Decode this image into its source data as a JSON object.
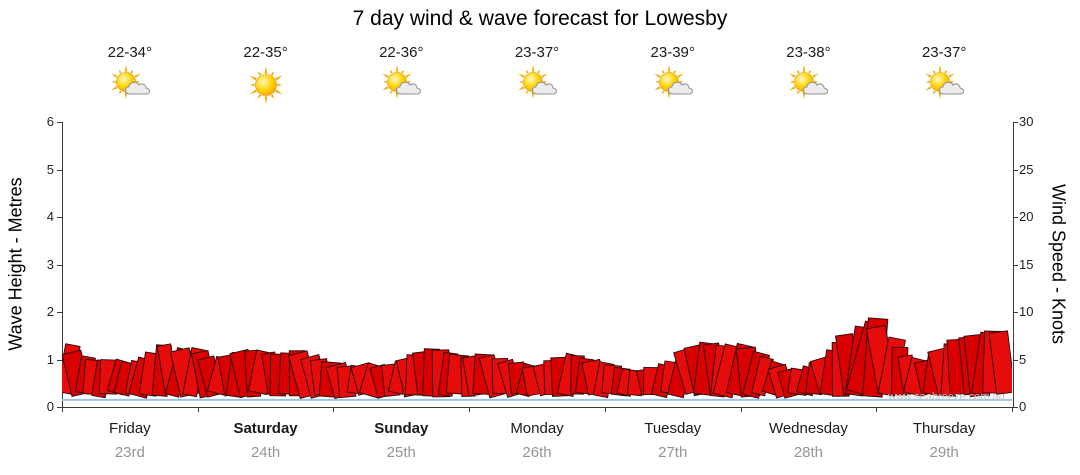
{
  "title": "7 day wind & wave forecast for Lowesby",
  "watermark": "www.seabreeze.com.au",
  "left_axis": {
    "label": "Wave Height - Metres",
    "range": [
      0,
      6
    ],
    "ticks": [
      0,
      1,
      2,
      3,
      4,
      5,
      6
    ]
  },
  "right_axis": {
    "label": "Wind Speed - Knots",
    "range": [
      0,
      30
    ],
    "ticks": [
      0,
      5,
      10,
      15,
      20,
      25,
      30
    ]
  },
  "days": [
    {
      "temp": "22-34°",
      "icon": "sun-cloud",
      "name": "Friday",
      "date": "23rd",
      "bold": false
    },
    {
      "temp": "22-35°",
      "icon": "sun",
      "name": "Saturday",
      "date": "24th",
      "bold": true
    },
    {
      "temp": "22-36°",
      "icon": "sun-cloud",
      "name": "Sunday",
      "date": "25th",
      "bold": true
    },
    {
      "temp": "23-37°",
      "icon": "sun-cloud",
      "name": "Monday",
      "date": "26th",
      "bold": false
    },
    {
      "temp": "23-39°",
      "icon": "sun-cloud",
      "name": "Tuesday",
      "date": "27th",
      "bold": false
    },
    {
      "temp": "23-38°",
      "icon": "sun-cloud",
      "name": "Wednesday",
      "date": "28th",
      "bold": false
    },
    {
      "temp": "23-37°",
      "icon": "sun-cloud",
      "name": "Thursday",
      "date": "29th",
      "bold": false
    }
  ],
  "chart_data": {
    "type": "area",
    "title": "7 day wind & wave forecast for Lowesby",
    "categories": [
      "Friday 23rd",
      "Saturday 24th",
      "Sunday 25th",
      "Monday 26th",
      "Tuesday 27th",
      "Wednesday 28th",
      "Thursday 29th"
    ],
    "points_per_day": 8,
    "x_resolution": "3-hourly",
    "series": [
      {
        "name": "Wind Speed",
        "unit": "knots",
        "color": "#dc0000",
        "style": "red wind-flag ribbon",
        "values": [
          7.0,
          5.5,
          4.8,
          5.0,
          4.6,
          5.2,
          6.8,
          6.0,
          6.2,
          5.0,
          5.5,
          6.0,
          5.8,
          5.5,
          6.0,
          5.2,
          4.6,
          4.2,
          4.5,
          4.3,
          4.8,
          5.6,
          6.2,
          5.6,
          5.2,
          5.6,
          5.0,
          4.6,
          4.2,
          5.0,
          5.6,
          5.0,
          4.6,
          4.0,
          3.8,
          4.2,
          4.8,
          6.2,
          6.8,
          6.4,
          6.6,
          5.6,
          4.6,
          3.8,
          4.2,
          5.2,
          7.0,
          8.6,
          9.4,
          7.0,
          5.2,
          4.8,
          6.2,
          7.2,
          7.6,
          8.0,
          7.8
        ]
      }
    ],
    "wave_line": {
      "name": "Wave Height",
      "unit": "metres",
      "color": "#9cc3e6",
      "approx_value": 0.15
    },
    "left_axis": {
      "label": "Wave Height - Metres",
      "range": [
        0,
        6
      ],
      "ticks": [
        0,
        1,
        2,
        3,
        4,
        5,
        6
      ]
    },
    "right_axis": {
      "label": "Wind Speed - Knots",
      "range": [
        0,
        30
      ],
      "ticks": [
        0,
        5,
        10,
        15,
        20,
        25,
        30
      ]
    },
    "unit_relation": "knots = metres x 5",
    "legend_position": "none",
    "grid": "dotted vertical day separators"
  }
}
